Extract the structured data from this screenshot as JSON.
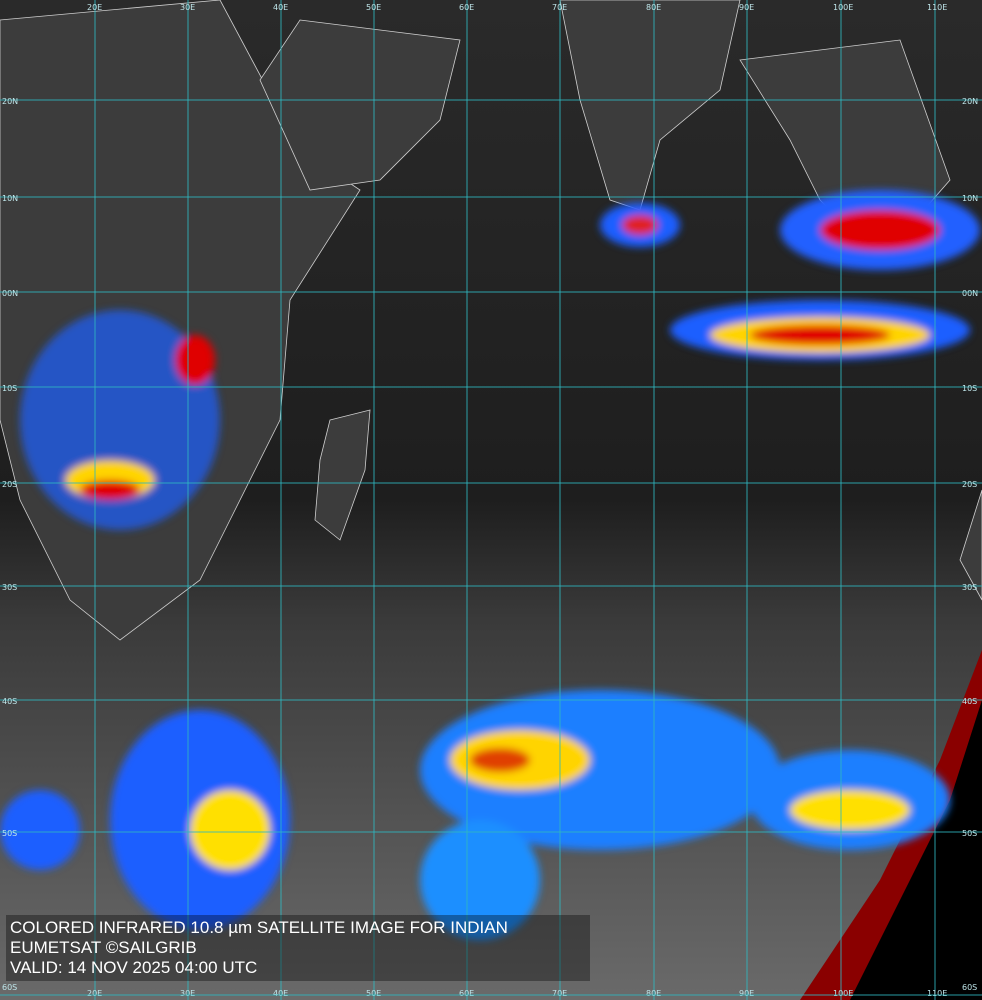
{
  "map": {
    "caption": {
      "line1": "COLORED INFRARED 10.8 µm SATELLITE IMAGE FOR INDIAN",
      "line2": "EUMETSAT ©SAILGRIB",
      "line3": "VALID:  14 NOV 2025 04:00 UTC"
    },
    "longitude_labels": [
      "20E",
      "30E",
      "40E",
      "50E",
      "60E",
      "70E",
      "80E",
      "90E",
      "100E",
      "110E"
    ],
    "latitude_labels": [
      "20N",
      "10N",
      "00N",
      "10S",
      "20S",
      "30S",
      "40S",
      "50S",
      "60S"
    ]
  }
}
